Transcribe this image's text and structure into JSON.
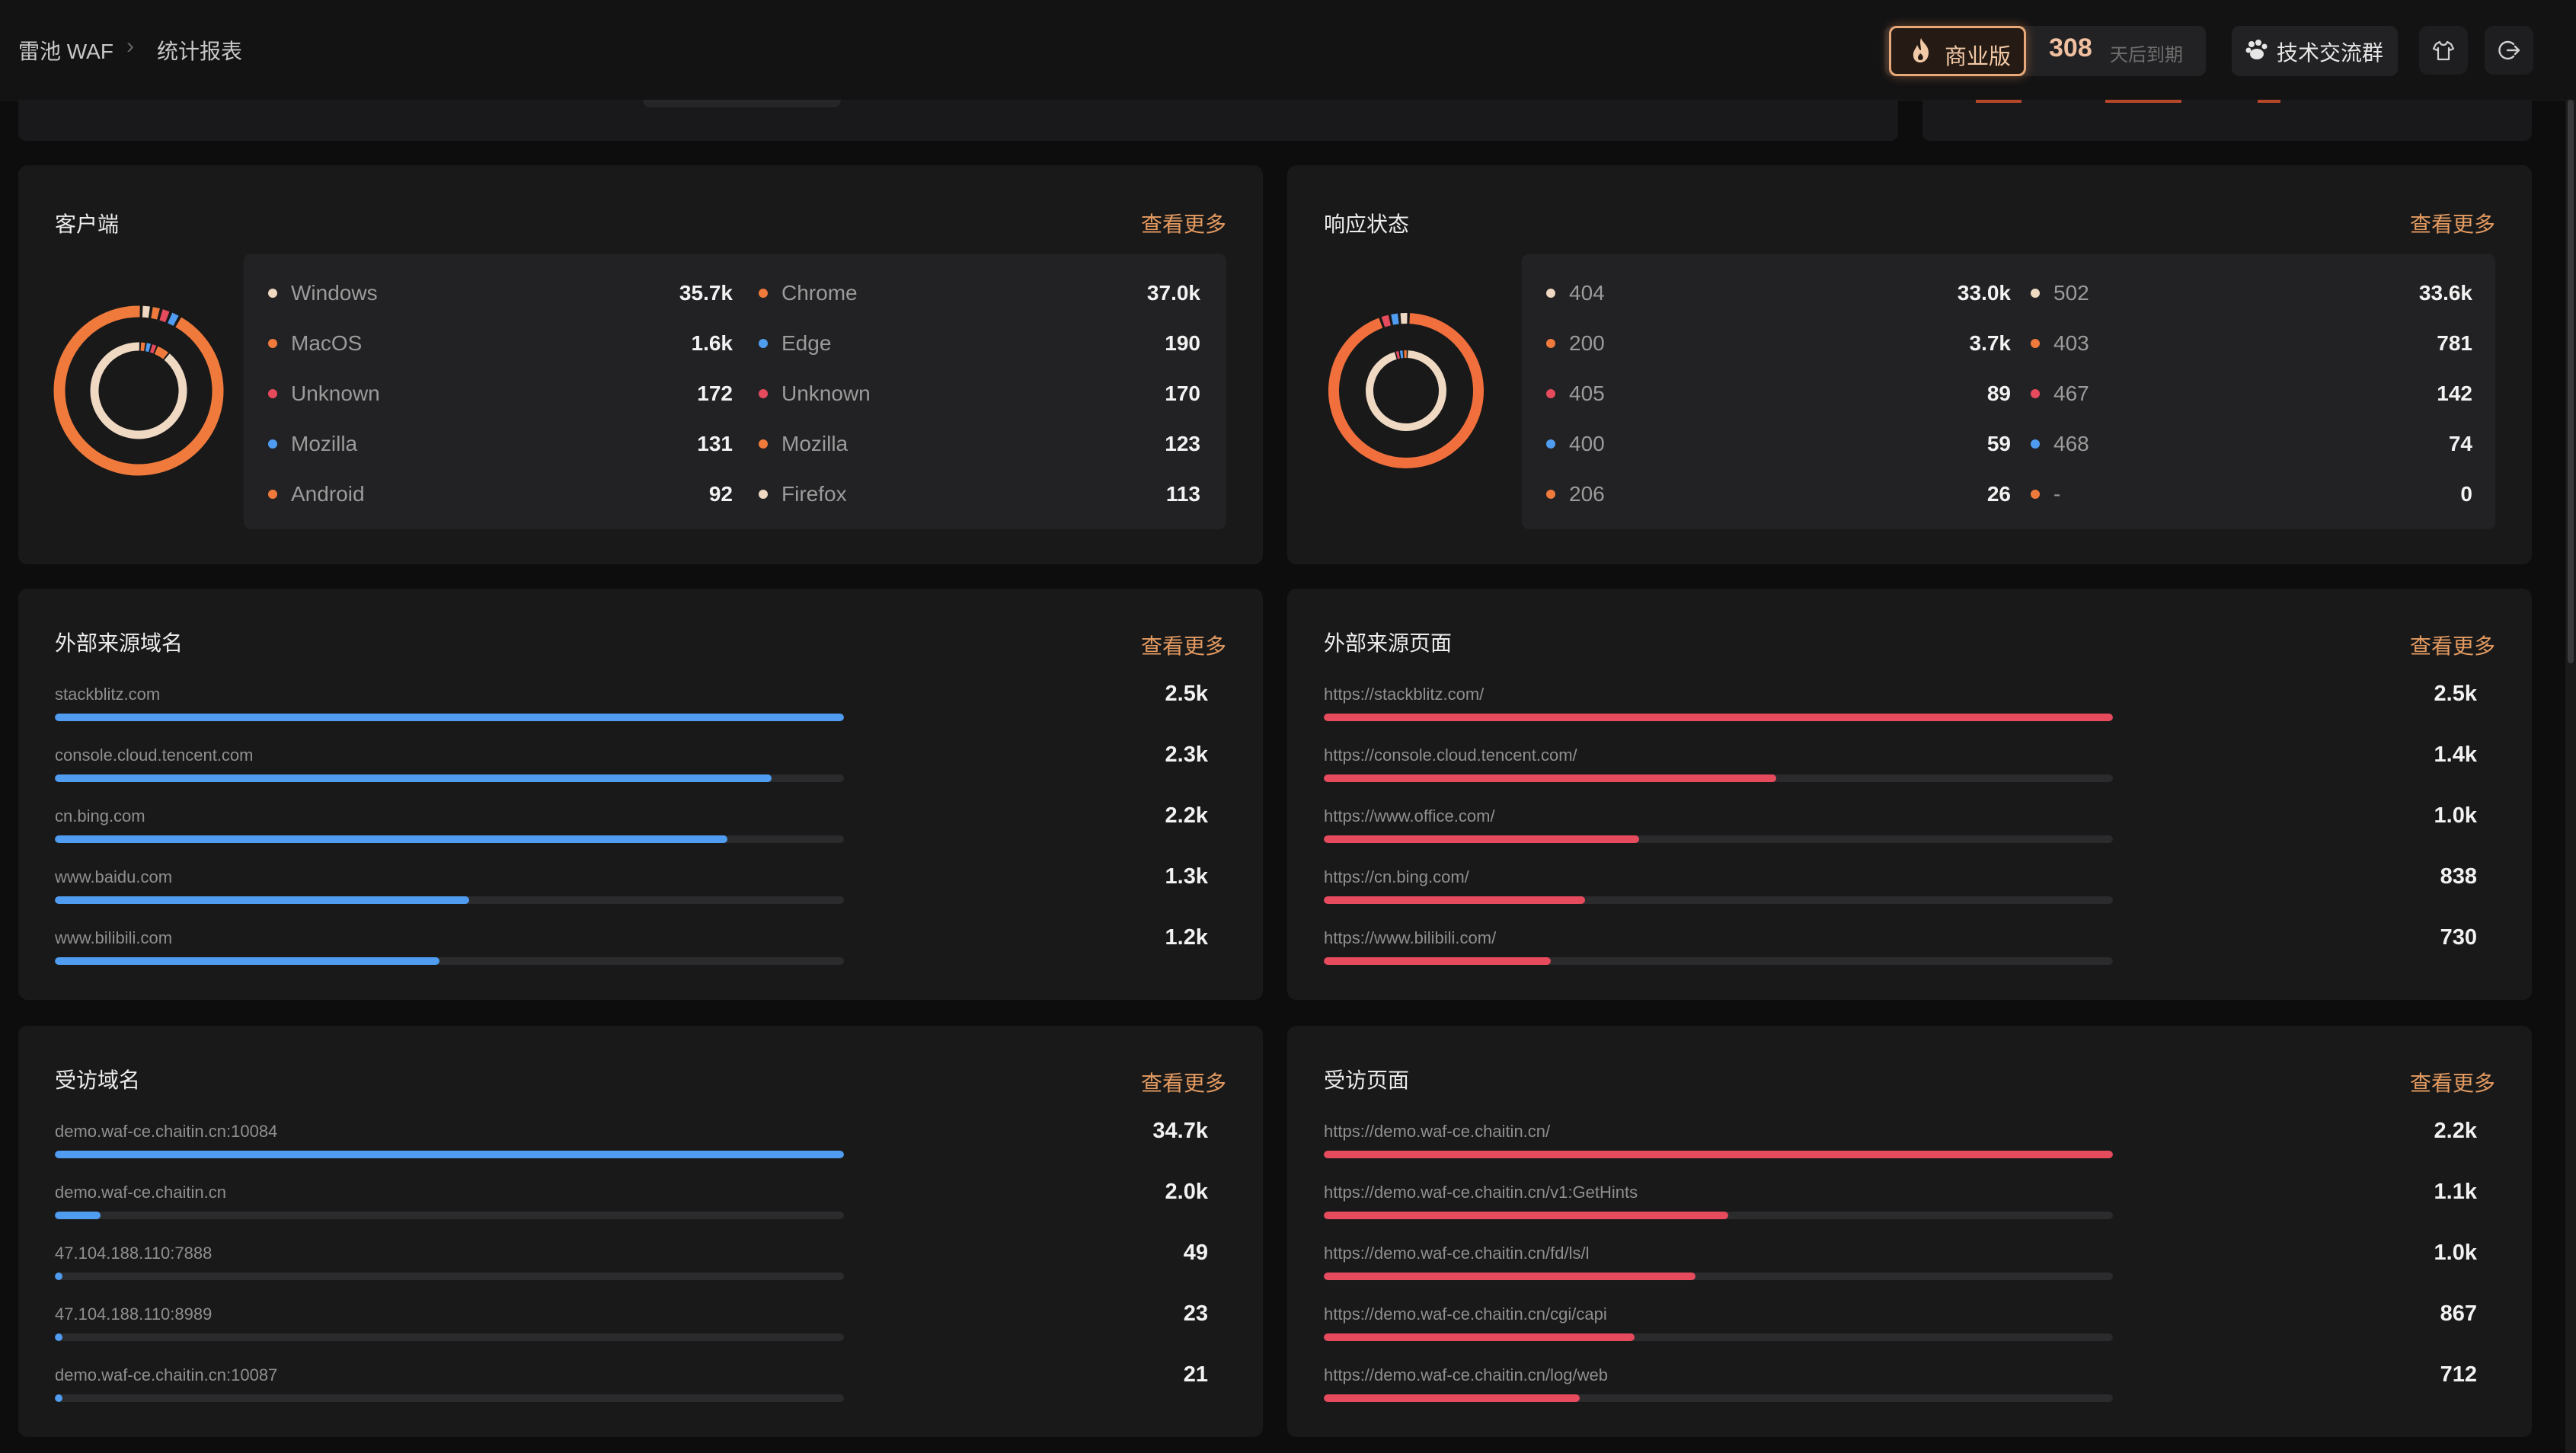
{
  "header": {
    "app_name": "雷池 WAF",
    "breadcrumb_sep": "›",
    "page_title": "统计报表",
    "edition_label": "商业版",
    "days_value": "308",
    "days_label": "天后到期",
    "group_label": "技术交流群"
  },
  "colors": {
    "accent": "#e39a60",
    "blue": "#4f9cf0",
    "red": "#e64a5d",
    "orange": "#f06f3d",
    "cream": "#efd9c3"
  },
  "panels": {
    "client": {
      "title": "客户端",
      "more": "查看更多",
      "os": [
        {
          "label": "Windows",
          "value": "35.7k",
          "color": "#efd9c3"
        },
        {
          "label": "MacOS",
          "value": "1.6k",
          "color": "#f07a3c"
        },
        {
          "label": "Unknown",
          "value": "172",
          "color": "#e64a5d"
        },
        {
          "label": "Mozilla",
          "value": "131",
          "color": "#4f9cf0"
        },
        {
          "label": "Android",
          "value": "92",
          "color": "#f07a3c"
        }
      ],
      "browser": [
        {
          "label": "Chrome",
          "value": "37.0k",
          "color": "#f07a3c"
        },
        {
          "label": "Edge",
          "value": "190",
          "color": "#4f9cf0"
        },
        {
          "label": "Unknown",
          "value": "170",
          "color": "#e64a5d"
        },
        {
          "label": "Mozilla",
          "value": "123",
          "color": "#f07a3c"
        },
        {
          "label": "Firefox",
          "value": "113",
          "color": "#efd9c3"
        }
      ]
    },
    "status": {
      "title": "响应状态",
      "more": "查看更多",
      "left": [
        {
          "label": "404",
          "value": "33.0k",
          "color": "#efd9c3"
        },
        {
          "label": "200",
          "value": "3.7k",
          "color": "#f07a3c"
        },
        {
          "label": "405",
          "value": "89",
          "color": "#e64a5d"
        },
        {
          "label": "400",
          "value": "59",
          "color": "#4f9cf0"
        },
        {
          "label": "206",
          "value": "26",
          "color": "#f07a3c"
        }
      ],
      "right": [
        {
          "label": "502",
          "value": "33.6k",
          "color": "#efd9c3"
        },
        {
          "label": "403",
          "value": "781",
          "color": "#f07a3c"
        },
        {
          "label": "467",
          "value": "142",
          "color": "#e64a5d"
        },
        {
          "label": "468",
          "value": "74",
          "color": "#4f9cf0"
        },
        {
          "label": "-",
          "value": "0",
          "color": "#f07a3c"
        }
      ]
    },
    "ref_domains": {
      "title": "外部来源域名",
      "more": "查看更多",
      "color": "#4f9cf0",
      "rows": [
        {
          "label": "stackblitz.com",
          "value": "2.5k",
          "fraction": 1.0
        },
        {
          "label": "console.cloud.tencent.com",
          "value": "2.3k",
          "fraction": 0.908
        },
        {
          "label": "cn.bing.com",
          "value": "2.2k",
          "fraction": 0.852
        },
        {
          "label": "www.baidu.com",
          "value": "1.3k",
          "fraction": 0.525
        },
        {
          "label": "www.bilibili.com",
          "value": "1.2k",
          "fraction": 0.487
        }
      ]
    },
    "ref_pages": {
      "title": "外部来源页面",
      "more": "查看更多",
      "color": "#e64a5d",
      "rows": [
        {
          "label": "https://stackblitz.com/",
          "value": "2.5k",
          "fraction": 1.0
        },
        {
          "label": "https://console.cloud.tencent.com/",
          "value": "1.4k",
          "fraction": 0.573
        },
        {
          "label": "https://www.office.com/",
          "value": "1.0k",
          "fraction": 0.4
        },
        {
          "label": "https://cn.bing.com/",
          "value": "838",
          "fraction": 0.331
        },
        {
          "label": "https://www.bilibili.com/",
          "value": "730",
          "fraction": 0.288
        }
      ]
    },
    "visited_domains": {
      "title": "受访域名",
      "more": "查看更多",
      "color": "#4f9cf0",
      "rows": [
        {
          "label": "demo.waf-ce.chaitin.cn:10084",
          "value": "34.7k",
          "fraction": 1.0
        },
        {
          "label": "demo.waf-ce.chaitin.cn",
          "value": "2.0k",
          "fraction": 0.058
        },
        {
          "label": "47.104.188.110:7888",
          "value": "49",
          "fraction": 0.0014
        },
        {
          "label": "47.104.188.110:8989",
          "value": "23",
          "fraction": 0.0007
        },
        {
          "label": "demo.waf-ce.chaitin.cn:10087",
          "value": "21",
          "fraction": 0.0006
        }
      ]
    },
    "visited_pages": {
      "title": "受访页面",
      "more": "查看更多",
      "color": "#e64a5d",
      "rows": [
        {
          "label": "https://demo.waf-ce.chaitin.cn/",
          "value": "2.2k",
          "fraction": 1.0
        },
        {
          "label": "https://demo.waf-ce.chaitin.cn/v1:GetHints",
          "value": "1.1k",
          "fraction": 0.513
        },
        {
          "label": "https://demo.waf-ce.chaitin.cn/fd/ls/l",
          "value": "1.0k",
          "fraction": 0.471
        },
        {
          "label": "https://demo.waf-ce.chaitin.cn/cgi/capi",
          "value": "867",
          "fraction": 0.394
        },
        {
          "label": "https://demo.waf-ce.chaitin.cn/log/web",
          "value": "712",
          "fraction": 0.324
        }
      ]
    }
  }
}
